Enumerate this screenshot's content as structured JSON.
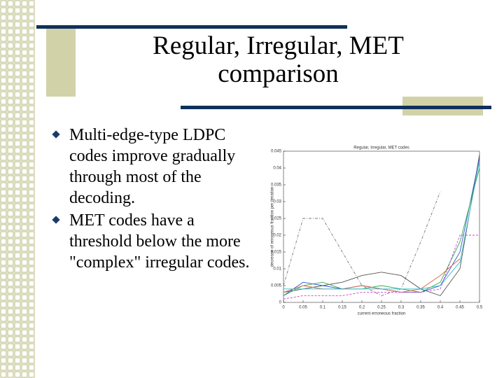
{
  "slide": {
    "title_lines": [
      "Regular, Irregular, MET",
      "comparison"
    ],
    "bullets": [
      "Multi-edge-type LDPC codes improve gradually through most of the decoding.",
      "MET codes have a threshold below the more \"complex\" irregular codes."
    ]
  },
  "chart_data": {
    "type": "line",
    "title": "Regular, Irregular, MET codes",
    "x_label": "current erroneous fraction",
    "y_label": "decrease of erroneous fraction per iteration",
    "x": [
      0,
      0.05,
      0.1,
      0.15,
      0.2,
      0.25,
      0.3,
      0.35,
      0.4,
      0.45,
      0.5
    ],
    "xlim": [
      0,
      0.5
    ],
    "xticks": [
      0,
      0.05,
      0.1,
      0.15,
      0.2,
      0.25,
      0.3,
      0.35,
      0.4,
      0.45,
      0.5
    ],
    "ylim": [
      0,
      0.045
    ],
    "yticks": [
      0,
      0.005,
      0.01,
      0.015,
      0.02,
      0.025,
      0.03,
      0.035,
      0.04,
      0.045
    ],
    "series": [
      {
        "color": "#777777",
        "dash": "4 2 1 2",
        "values": [
          0.005,
          0.025,
          0.025,
          0.015,
          0.005,
          0.002,
          0.004,
          0.018,
          0.033,
          null,
          null
        ]
      },
      {
        "color": "#555555",
        "values": [
          0.003,
          0.004,
          0.005,
          0.006,
          0.008,
          0.009,
          0.008,
          0.004,
          0.002,
          0.01,
          0.044
        ]
      },
      {
        "color": "#3355cc",
        "values": [
          0.002,
          0.006,
          0.005,
          0.004,
          0.005,
          0.004,
          0.003,
          0.003,
          0.005,
          0.015,
          0.043
        ]
      },
      {
        "color": "#33aa55",
        "values": [
          0.002,
          0.005,
          0.006,
          0.004,
          0.004,
          0.005,
          0.004,
          0.003,
          0.006,
          0.018,
          0.04
        ]
      },
      {
        "color": "#dd6644",
        "values": [
          0.003,
          0.005,
          0.004,
          0.004,
          0.005,
          0.004,
          0.003,
          0.004,
          0.008,
          0.013,
          null
        ]
      },
      {
        "color": "#cc44cc",
        "dash": "3 2",
        "values": [
          0.001,
          0.002,
          0.002,
          0.002,
          0.003,
          0.003,
          0.003,
          0.003,
          0.004,
          0.02,
          0.02
        ]
      },
      {
        "color": "#33bbcc",
        "values": [
          0.004,
          0.004,
          0.004,
          0.004,
          0.004,
          0.004,
          0.004,
          0.004,
          0.005,
          0.012,
          0.042
        ]
      }
    ]
  }
}
